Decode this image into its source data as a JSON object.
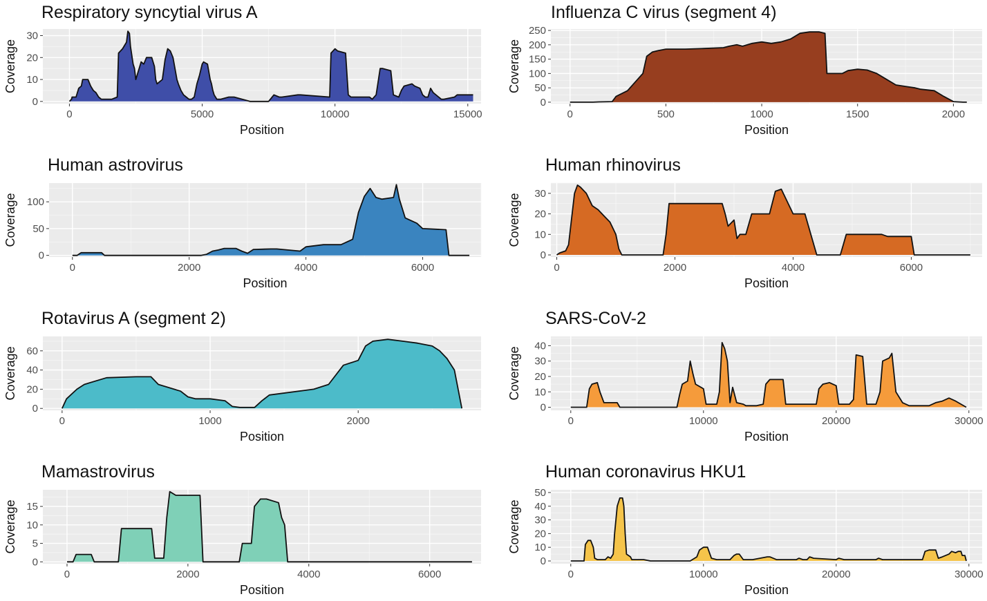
{
  "chart_data": [
    {
      "type": "area",
      "title": "Respiratory syncytial virus A",
      "xlabel": "Position",
      "ylabel": "Coverage",
      "xlim": [
        -1000,
        15500
      ],
      "ylim": [
        -1,
        33
      ],
      "xticks": [
        0,
        5000,
        10000,
        15000
      ],
      "yticks": [
        0,
        10,
        20,
        30
      ],
      "fill": "#3f4ea8",
      "x": [
        0,
        80,
        100,
        250,
        350,
        450,
        500,
        600,
        700,
        800,
        900,
        1000,
        1100,
        1200,
        1600,
        1800,
        1850,
        2000,
        2150,
        2200,
        2260,
        2300,
        2400,
        2450,
        2500,
        2700,
        2800,
        2900,
        3100,
        3200,
        3250,
        3300,
        3500,
        3600,
        3700,
        3800,
        3900,
        4050,
        4100,
        4200,
        4300,
        4400,
        4500,
        4600,
        4700,
        4800,
        4900,
        5000,
        5050,
        5200,
        5300,
        5350,
        5400,
        5450,
        5500,
        5550,
        5600,
        5700,
        6000,
        6100,
        6200,
        6800,
        7000,
        7500,
        7700,
        7900,
        8000,
        8600,
        8700,
        9800,
        9850,
        10000,
        10100,
        10400,
        10500,
        10600,
        11300,
        11400,
        11550,
        11700,
        11800,
        12100,
        12200,
        12400,
        12500,
        12600,
        12900,
        13000,
        13200,
        13300,
        13400,
        13500,
        13600,
        13700,
        14000,
        14100,
        14500,
        14600,
        15000,
        15200
      ],
      "y": [
        0,
        1,
        2,
        2,
        6,
        7,
        10,
        10,
        10,
        7,
        5,
        4,
        2,
        1,
        1,
        2,
        22,
        24,
        27,
        32,
        31,
        25,
        17,
        15,
        10,
        18,
        17,
        20,
        20,
        16,
        10,
        8,
        10,
        19,
        24,
        23,
        20,
        10,
        8,
        5,
        3,
        2,
        1,
        1,
        2,
        8,
        12,
        17,
        18,
        17,
        10,
        8,
        5,
        3,
        2,
        1,
        1,
        1,
        2,
        2,
        2,
        0,
        0,
        0,
        3,
        2,
        2,
        3,
        3,
        2,
        22,
        24,
        23,
        22,
        3,
        2,
        2,
        1,
        3,
        15,
        15,
        14,
        3,
        2,
        5,
        7,
        8,
        7,
        6,
        3,
        2,
        2,
        6,
        4,
        1,
        1,
        2,
        3,
        3,
        3
      ]
    },
    {
      "type": "area",
      "title": "Influenza C virus (segment 4)",
      "xlabel": "Position",
      "ylabel": "Coverage",
      "xlim": [
        -100,
        2150
      ],
      "ylim": [
        -5,
        255
      ],
      "xticks": [
        0,
        500,
        1000,
        1500,
        2000
      ],
      "yticks": [
        0,
        50,
        100,
        150,
        200,
        250
      ],
      "fill": "#973e1f",
      "x": [
        0,
        120,
        150,
        220,
        240,
        300,
        340,
        380,
        400,
        430,
        460,
        500,
        600,
        700,
        800,
        830,
        870,
        900,
        950,
        1000,
        1050,
        1100,
        1150,
        1200,
        1250,
        1300,
        1330,
        1340,
        1380,
        1420,
        1450,
        1500,
        1550,
        1600,
        1650,
        1700,
        1750,
        1800,
        1830,
        1900,
        1950,
        2000,
        2050,
        2070
      ],
      "y": [
        0,
        0,
        1,
        2,
        20,
        40,
        70,
        100,
        160,
        175,
        180,
        185,
        185,
        187,
        190,
        195,
        200,
        195,
        205,
        210,
        205,
        210,
        220,
        240,
        245,
        245,
        240,
        100,
        100,
        100,
        110,
        115,
        112,
        100,
        80,
        60,
        55,
        50,
        45,
        40,
        20,
        2,
        0,
        0
      ]
    },
    {
      "type": "area",
      "title": "Human astrovirus",
      "xlabel": "Position",
      "ylabel": "Coverage",
      "xlim": [
        -400,
        7000
      ],
      "ylim": [
        -3,
        135
      ],
      "xticks": [
        0,
        2000,
        4000,
        6000
      ],
      "yticks": [
        0,
        50,
        100
      ],
      "fill": "#3a84bf",
      "x": [
        0,
        80,
        150,
        500,
        550,
        2200,
        2300,
        2400,
        2500,
        2600,
        2800,
        2900,
        3000,
        3100,
        3400,
        3500,
        3900,
        4000,
        4300,
        4600,
        4800,
        4900,
        5000,
        5100,
        5200,
        5300,
        5500,
        5550,
        5600,
        5700,
        5900,
        6000,
        6400,
        6450,
        6800
      ],
      "y": [
        0,
        0,
        5,
        5,
        0,
        0,
        2,
        8,
        10,
        13,
        13,
        8,
        4,
        11,
        12,
        12,
        8,
        16,
        20,
        20,
        30,
        80,
        110,
        125,
        108,
        105,
        108,
        132,
        105,
        70,
        60,
        50,
        48,
        0,
        0
      ]
    },
    {
      "type": "area",
      "title": "Human rhinovirus",
      "xlabel": "Position",
      "ylabel": "Coverage",
      "xlim": [
        -100,
        7200
      ],
      "ylim": [
        -1,
        35
      ],
      "xticks": [
        0,
        2000,
        4000,
        6000
      ],
      "yticks": [
        0,
        10,
        20,
        30
      ],
      "fill": "#d66a23",
      "x": [
        0,
        50,
        150,
        200,
        300,
        350,
        400,
        500,
        600,
        700,
        800,
        900,
        1000,
        1050,
        1100,
        1800,
        1850,
        1900,
        2800,
        2850,
        2900,
        3000,
        3050,
        3100,
        3200,
        3300,
        3600,
        3700,
        3800,
        4000,
        4200,
        4300,
        4400,
        4800,
        4850,
        4900,
        5000,
        5500,
        5600,
        6000,
        6050,
        7000
      ],
      "y": [
        0,
        1,
        2,
        5,
        30,
        34,
        33,
        30,
        24,
        22,
        19,
        16,
        10,
        3,
        0,
        0,
        10,
        25,
        25,
        20,
        14,
        17,
        8,
        10,
        10,
        20,
        20,
        31,
        32,
        20,
        20,
        10,
        0,
        0,
        5,
        10,
        10,
        10,
        9,
        9,
        0,
        0
      ]
    },
    {
      "type": "area",
      "title": "Rotavirus A (segment 2)",
      "xlabel": "Position",
      "ylabel": "Coverage",
      "xlim": [
        -130,
        2830
      ],
      "ylim": [
        -2,
        75
      ],
      "xticks": [
        0,
        1000,
        2000
      ],
      "yticks": [
        0,
        20,
        40,
        60
      ],
      "fill": "#4cbbc9",
      "x": [
        0,
        30,
        100,
        150,
        300,
        500,
        600,
        650,
        800,
        850,
        900,
        1000,
        1100,
        1150,
        1200,
        1300,
        1350,
        1400,
        1700,
        1800,
        1900,
        2000,
        2050,
        2100,
        2200,
        2300,
        2400,
        2500,
        2550,
        2600,
        2650,
        2700
      ],
      "y": [
        0,
        10,
        20,
        25,
        32,
        33,
        33,
        25,
        18,
        12,
        10,
        10,
        8,
        2,
        1,
        1,
        8,
        14,
        20,
        25,
        45,
        50,
        65,
        70,
        72,
        70,
        68,
        65,
        60,
        52,
        40,
        0
      ]
    },
    {
      "type": "area",
      "title": "SARS-CoV-2",
      "xlabel": "Position",
      "ylabel": "Coverage",
      "xlim": [
        -1500,
        31000
      ],
      "ylim": [
        -2,
        46
      ],
      "xticks": [
        0,
        10000,
        20000,
        30000
      ],
      "yticks": [
        0,
        10,
        20,
        30,
        40
      ],
      "fill": "#f59b3b",
      "x": [
        0,
        1200,
        1400,
        1600,
        2000,
        2200,
        2500,
        3500,
        3700,
        8000,
        8200,
        8400,
        8800,
        9000,
        9200,
        9400,
        10000,
        10200,
        11000,
        11200,
        11400,
        11600,
        11800,
        12000,
        12200,
        12500,
        13000,
        13200,
        13500,
        14000,
        14500,
        14700,
        15000,
        15500,
        16000,
        16200,
        18000,
        18500,
        18700,
        19000,
        19500,
        20000,
        20200,
        21000,
        21300,
        21500,
        22000,
        22300,
        23000,
        23300,
        23500,
        24000,
        24200,
        24500,
        25000,
        25500,
        26000,
        27000,
        27500,
        28000,
        28500,
        29000,
        29800
      ],
      "y": [
        0,
        0,
        12,
        15,
        16,
        10,
        3,
        3,
        0,
        0,
        8,
        15,
        17,
        30,
        22,
        15,
        12,
        2,
        2,
        10,
        42,
        38,
        30,
        3,
        13,
        3,
        2,
        1,
        1,
        1,
        2,
        15,
        18,
        18,
        18,
        2,
        2,
        2,
        12,
        15,
        16,
        14,
        2,
        2,
        5,
        34,
        33,
        2,
        2,
        10,
        30,
        32,
        35,
        10,
        3,
        1,
        1,
        1,
        3,
        4,
        6,
        4,
        0
      ]
    },
    {
      "type": "area",
      "title": "Mamastrovirus",
      "xlabel": "Position",
      "ylabel": "Coverage",
      "xlim": [
        -400,
        6850
      ],
      "ylim": [
        -0.5,
        19.5
      ],
      "xticks": [
        0,
        2000,
        4000,
        6000
      ],
      "yticks": [
        0,
        5,
        10,
        15
      ],
      "fill": "#7fd0b7",
      "x": [
        0,
        100,
        150,
        400,
        450,
        850,
        900,
        1400,
        1450,
        1600,
        1650,
        1700,
        1800,
        2200,
        2250,
        2850,
        2900,
        3050,
        3100,
        3200,
        3300,
        3500,
        3550,
        3600,
        3650,
        6700
      ],
      "y": [
        0,
        0,
        2,
        2,
        0,
        0,
        9,
        9,
        1,
        1,
        12,
        19,
        18,
        18,
        0,
        0,
        5,
        5,
        15,
        17,
        17,
        16,
        12,
        10,
        0,
        0
      ]
    },
    {
      "type": "area",
      "title": "Human coronavirus HKU1",
      "xlabel": "Position",
      "ylabel": "Coverage",
      "xlim": [
        -1500,
        31000
      ],
      "ylim": [
        -2,
        52
      ],
      "xticks": [
        0,
        10000,
        20000,
        30000
      ],
      "yticks": [
        0,
        10,
        20,
        30,
        40,
        50
      ],
      "fill": "#f5c44a",
      "x": [
        0,
        1000,
        1100,
        1300,
        1500,
        1700,
        1800,
        2000,
        2600,
        2800,
        3000,
        3200,
        3300,
        3500,
        3700,
        3900,
        4000,
        4100,
        4200,
        4500,
        4600,
        5500,
        6000,
        6200,
        9000,
        9500,
        9700,
        10000,
        10300,
        10600,
        11000,
        12000,
        12300,
        12500,
        12700,
        13000,
        13500,
        13700,
        14800,
        15000,
        15500,
        15800,
        17000,
        17200,
        17500,
        17800,
        18000,
        18300,
        20000,
        20200,
        20600,
        22000,
        23000,
        23200,
        23500,
        26000,
        26500,
        26700,
        27000,
        27500,
        27700,
        28000,
        28500,
        28700,
        29000,
        29200,
        29400,
        29500,
        29700,
        29800
      ],
      "y": [
        0,
        0,
        12,
        15,
        15,
        10,
        2,
        1,
        1,
        3,
        2,
        5,
        20,
        40,
        46,
        46,
        40,
        20,
        5,
        3,
        1,
        1,
        0,
        0,
        0,
        3,
        8,
        10,
        10,
        2,
        1,
        1,
        4,
        5,
        5,
        1,
        1,
        1,
        3,
        3,
        1,
        1,
        1,
        2,
        1,
        1,
        3,
        2,
        1,
        2,
        1,
        1,
        1,
        2,
        1,
        1,
        1,
        7,
        8,
        8,
        2,
        3,
        5,
        7,
        6,
        7,
        7,
        4,
        4,
        0
      ]
    }
  ]
}
